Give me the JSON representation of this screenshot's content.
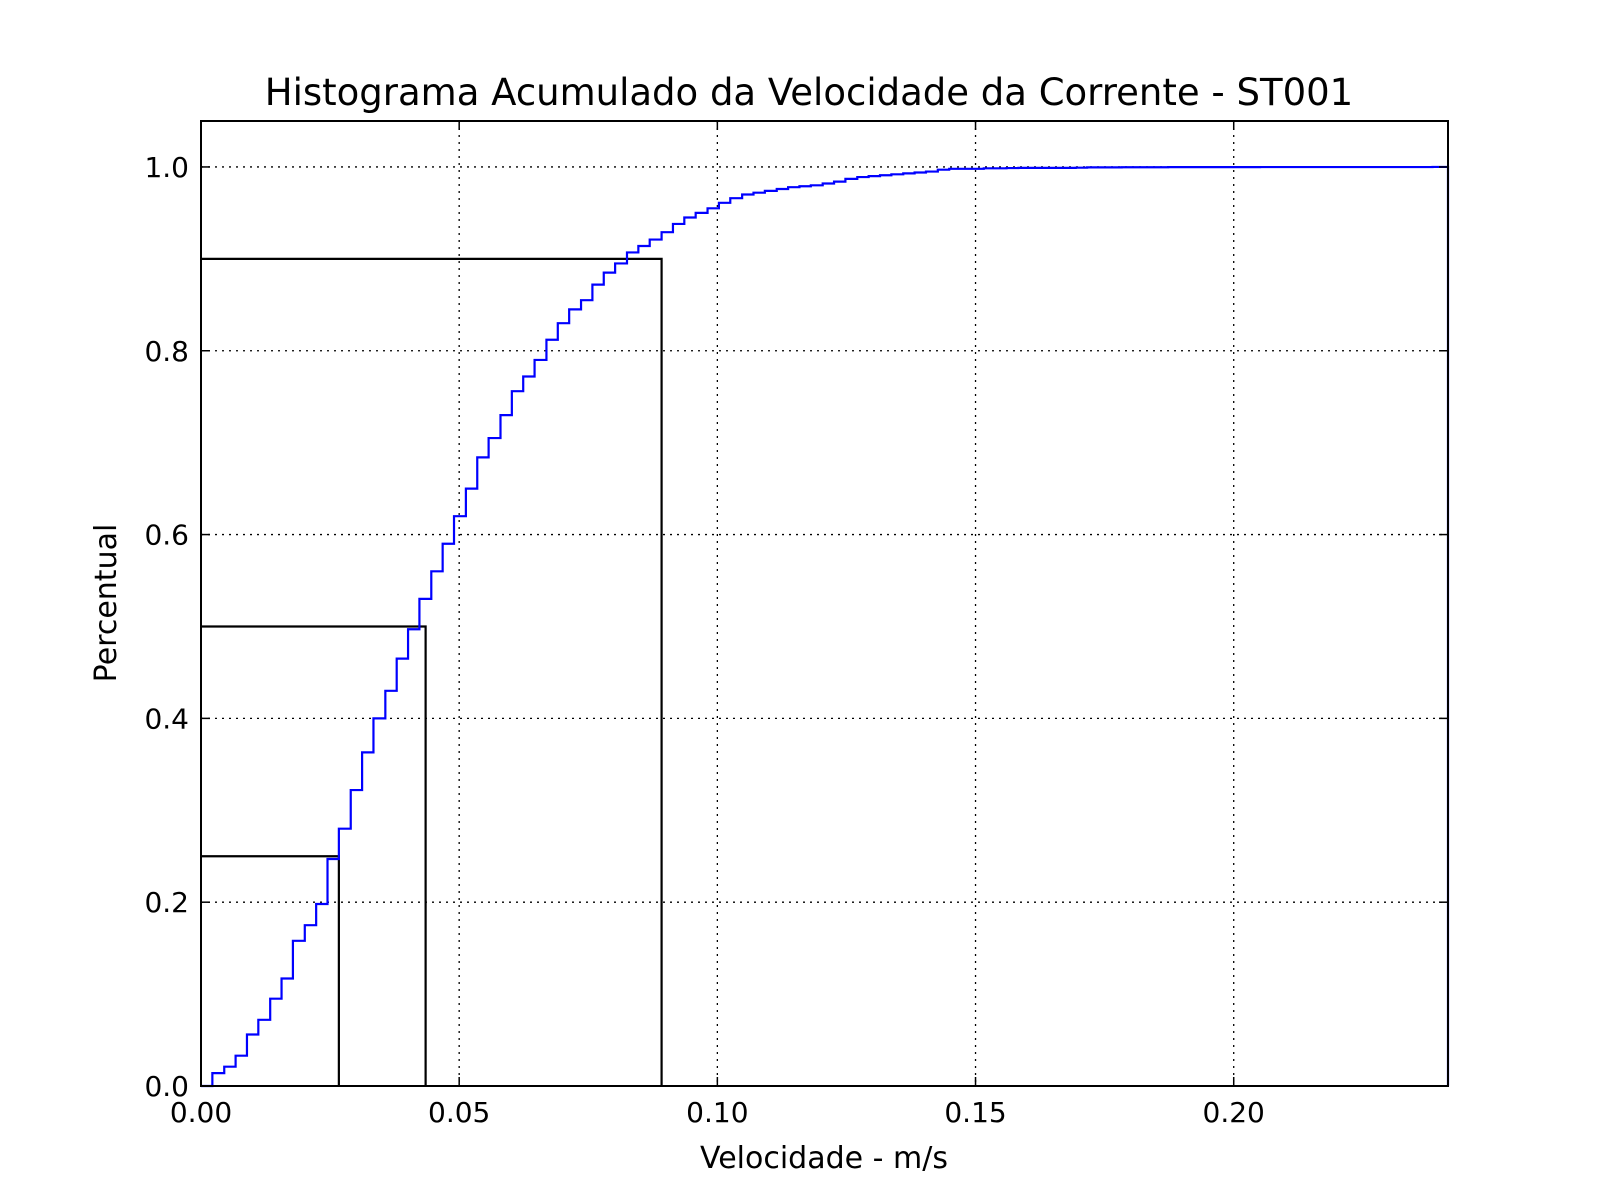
{
  "chart_data": {
    "type": "line",
    "title": "Histograma Acumulado da Velocidade da Corrente - ST001",
    "xlabel": "Velocidade - m/s",
    "ylabel": "Percentual",
    "xlim": [
      0.0,
      0.2415
    ],
    "ylim": [
      0.0,
      1.05
    ],
    "grid": true,
    "grid_style": "dotted",
    "x_ticks": [
      0.0,
      0.05,
      0.1,
      0.15,
      0.2
    ],
    "x_tick_labels": [
      "0.00",
      "0.05",
      "0.10",
      "0.15",
      "0.20"
    ],
    "y_ticks": [
      0.0,
      0.2,
      0.4,
      0.6,
      0.8,
      1.0
    ],
    "y_tick_labels": [
      "0.0",
      "0.2",
      "0.4",
      "0.6",
      "0.8",
      "1.0"
    ],
    "colors": {
      "cumulative": "#0000ff",
      "percentile_lines": "#000000",
      "grid": "#000000"
    },
    "series": [
      {
        "style": "step",
        "x": [
          0.0,
          0.0022,
          0.0045,
          0.0067,
          0.0089,
          0.0111,
          0.0134,
          0.0156,
          0.0178,
          0.0201,
          0.0223,
          0.0245,
          0.0267,
          0.029,
          0.0312,
          0.0334,
          0.0357,
          0.0379,
          0.0401,
          0.0423,
          0.0446,
          0.0468,
          0.049,
          0.0513,
          0.0535,
          0.0557,
          0.058,
          0.0602,
          0.0624,
          0.0646,
          0.0669,
          0.0691,
          0.0713,
          0.0736,
          0.0758,
          0.078,
          0.0802,
          0.0825,
          0.0847,
          0.0869,
          0.0892,
          0.0914,
          0.0936,
          0.0958,
          0.0981,
          0.1003,
          0.1025,
          0.1048,
          0.107,
          0.1092,
          0.1115,
          0.1137,
          0.1159,
          0.1181,
          0.1204,
          0.1226,
          0.1248,
          0.1271,
          0.1293,
          0.1315,
          0.1337,
          0.136,
          0.1382,
          0.1404,
          0.1427,
          0.1449,
          0.1471,
          0.1494,
          0.1516,
          0.1538,
          0.156,
          0.1583,
          0.1605,
          0.1627,
          0.165,
          0.1672,
          0.1694,
          0.1716,
          0.1739,
          0.1761,
          0.1783,
          0.1806,
          0.1828,
          0.185,
          0.1873,
          0.1895,
          0.1917,
          0.1939,
          0.1962,
          0.1984,
          0.2006,
          0.2029,
          0.2051,
          0.2073,
          0.2095,
          0.2118,
          0.214,
          0.2162,
          0.2185,
          0.2207,
          0.2229,
          0.2252,
          0.2274,
          0.2296,
          0.2318,
          0.2341,
          0.2363,
          0.2385,
          0.2408
        ],
        "y": [
          0.0,
          0.014,
          0.021,
          0.033,
          0.056,
          0.072,
          0.095,
          0.117,
          0.158,
          0.175,
          0.198,
          0.247,
          0.28,
          0.322,
          0.363,
          0.4,
          0.43,
          0.465,
          0.497,
          0.53,
          0.56,
          0.59,
          0.62,
          0.65,
          0.684,
          0.705,
          0.73,
          0.756,
          0.772,
          0.79,
          0.812,
          0.83,
          0.845,
          0.855,
          0.872,
          0.885,
          0.895,
          0.907,
          0.914,
          0.921,
          0.929,
          0.938,
          0.945,
          0.95,
          0.955,
          0.961,
          0.966,
          0.97,
          0.972,
          0.974,
          0.976,
          0.978,
          0.979,
          0.98,
          0.982,
          0.984,
          0.987,
          0.989,
          0.99,
          0.991,
          0.992,
          0.993,
          0.994,
          0.995,
          0.997,
          0.998,
          0.998,
          0.998,
          0.9985,
          0.9985,
          0.9988,
          0.999,
          0.999,
          0.999,
          0.999,
          0.999,
          0.9992,
          0.9995,
          0.9995,
          0.9995,
          0.9997,
          0.9997,
          0.9997,
          0.9997,
          0.9998,
          0.9998,
          0.9998,
          0.9998,
          0.9998,
          0.9998,
          0.9998,
          0.9998,
          0.9999,
          0.9999,
          0.9999,
          0.9999,
          0.9999,
          0.9999,
          0.9999,
          0.9999,
          0.9999,
          0.9999,
          0.9999,
          0.9999,
          0.9999,
          0.9999,
          0.9999,
          1.0,
          1.0
        ]
      }
    ],
    "percentile_boxes": [
      {
        "percentile": 0.25,
        "value": 0.0267
      },
      {
        "percentile": 0.5,
        "value": 0.0435
      },
      {
        "percentile": 0.9,
        "value": 0.0892
      }
    ]
  }
}
